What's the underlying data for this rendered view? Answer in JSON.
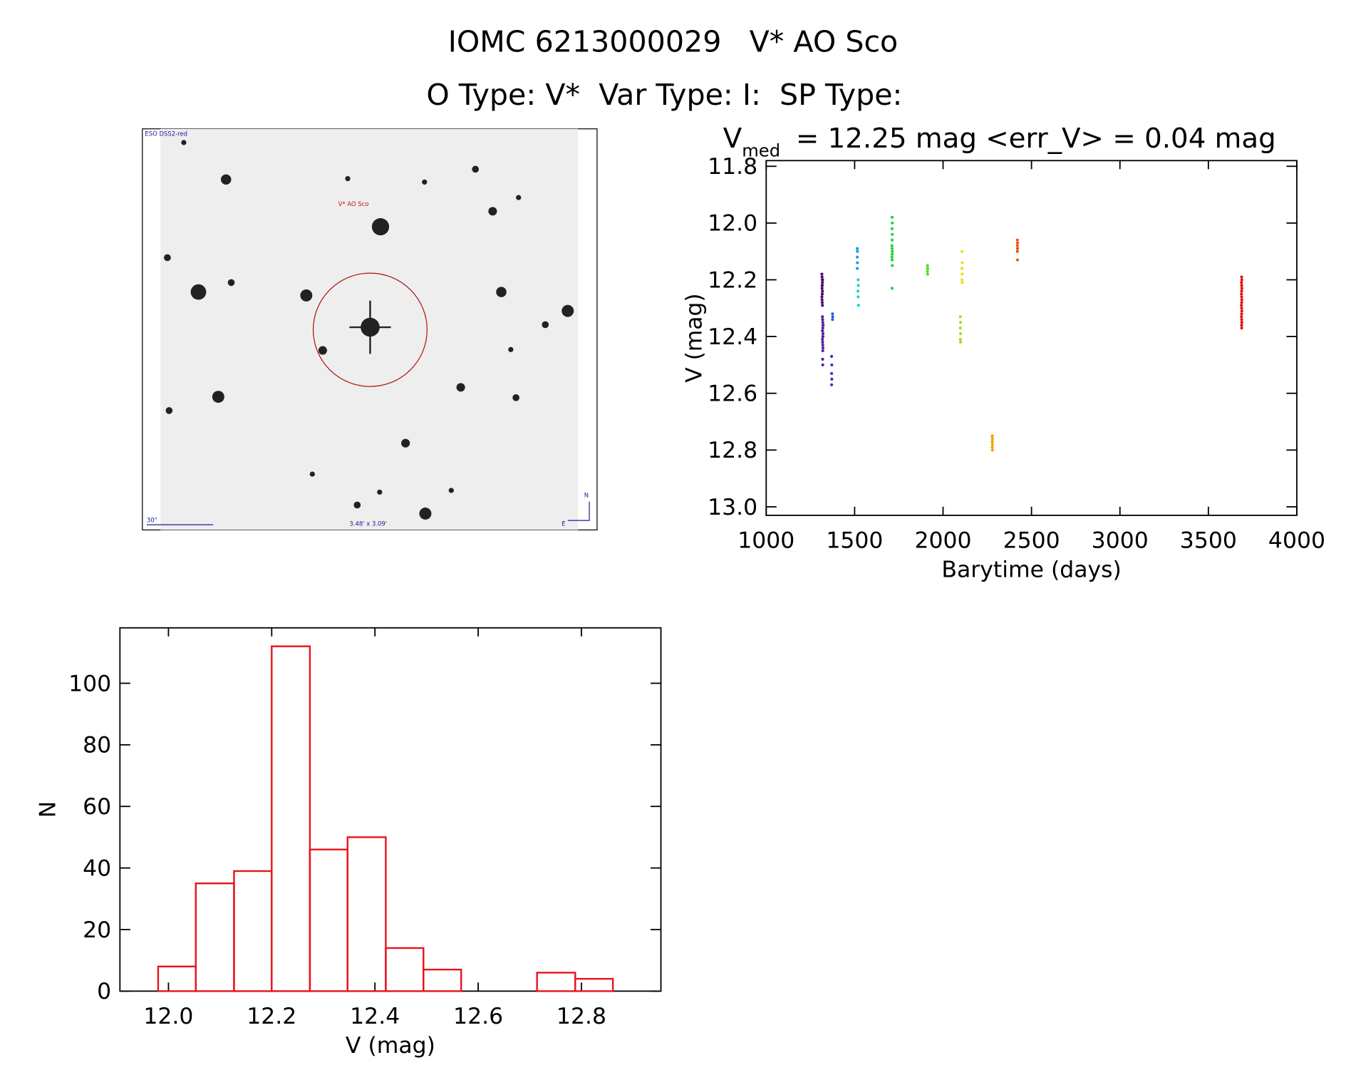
{
  "header": {
    "title": "IOMC 6213000029   V* AO Sco",
    "subtitle": "O Type: V*  Var Type: I:  SP Type:"
  },
  "image": {
    "survey": "ESO DSS2-red",
    "target": "V* AO Sco",
    "scale": "30\"",
    "size": "3.48' x 3.09'",
    "north": "N",
    "east": "E"
  },
  "chart_data": [
    {
      "type": "scatter",
      "title": {
        "symbol": "V",
        "subscript": "med",
        "text": "= 12.25 mag <err_V> = 0.04 mag"
      },
      "x_label": "Barytime (days)",
      "y_label": "V (mag)",
      "xlim": [
        1000,
        4000
      ],
      "xticks": [
        1000,
        1500,
        2000,
        2500,
        3000,
        3500,
        4000
      ],
      "ylim": [
        11.78,
        13.03
      ],
      "y_inverted": true,
      "yticks": [
        11.8,
        {
          "value": 12.0,
          "label": "12.0"
        },
        12.2,
        12.4,
        12.6,
        12.8,
        {
          "value": 13.0,
          "label": "13.0"
        }
      ],
      "series": [
        {
          "color": "#4b0c7a",
          "x": [
            1315,
            1316,
            1317,
            1318,
            1317,
            1316,
            1318,
            1317,
            1315,
            1316,
            1317,
            1318,
            1319,
            1316,
            1317
          ],
          "values": [
            12.18,
            12.19,
            12.2,
            12.21,
            12.22,
            12.23,
            12.24,
            12.25,
            12.26,
            12.27,
            12.28,
            12.29,
            12.2,
            12.22,
            12.25
          ]
        },
        {
          "color": "#5a1fa0",
          "x": [
            1318,
            1319,
            1320,
            1321,
            1320,
            1319,
            1321,
            1320,
            1318,
            1319,
            1320,
            1321,
            1320,
            1319,
            1320,
            1322,
            1318,
            1321
          ],
          "values": [
            12.33,
            12.34,
            12.35,
            12.36,
            12.37,
            12.38,
            12.39,
            12.4,
            12.41,
            12.42,
            12.43,
            12.44,
            12.45,
            12.48,
            12.5,
            12.36,
            12.38,
            12.4
          ]
        },
        {
          "color": "#3d2fc8",
          "x": [
            1370,
            1371,
            1370,
            1371,
            1370
          ],
          "values": [
            12.47,
            12.5,
            12.53,
            12.55,
            12.57
          ]
        },
        {
          "color": "#2060e0",
          "x": [
            1375,
            1376,
            1375
          ],
          "values": [
            12.32,
            12.33,
            12.34
          ]
        },
        {
          "color": "#1a9ae8",
          "x": [
            1515,
            1516,
            1515,
            1516,
            1515
          ],
          "values": [
            12.09,
            12.1,
            12.12,
            12.14,
            12.16
          ]
        },
        {
          "color": "#20d0d0",
          "x": [
            1520,
            1521,
            1519,
            1520,
            1522
          ],
          "values": [
            12.2,
            12.22,
            12.24,
            12.26,
            12.29
          ]
        },
        {
          "color": "#20d040",
          "x": [
            1712,
            1713,
            1712,
            1713,
            1712,
            1711,
            1712,
            1713,
            1712,
            1711,
            1712,
            1713,
            1712
          ],
          "values": [
            11.98,
            12.0,
            12.02,
            12.04,
            12.06,
            12.08,
            12.09,
            12.1,
            12.11,
            12.12,
            12.13,
            12.15,
            12.23
          ]
        },
        {
          "color": "#50e020",
          "x": [
            1912,
            1913,
            1912,
            1913
          ],
          "values": [
            12.15,
            12.16,
            12.17,
            12.18
          ]
        },
        {
          "color": "#a0e020",
          "x": [
            2098,
            2099,
            2098,
            2099,
            2098,
            2099
          ],
          "values": [
            12.33,
            12.35,
            12.37,
            12.39,
            12.41,
            12.42
          ]
        },
        {
          "color": "#e8e020",
          "x": [
            2107,
            2108,
            2107,
            2108,
            2107,
            2108
          ],
          "values": [
            12.1,
            12.14,
            12.16,
            12.18,
            12.2,
            12.21
          ]
        },
        {
          "color": "#f0a000",
          "x": [
            2278,
            2279,
            2278,
            2279,
            2278,
            2279
          ],
          "values": [
            12.75,
            12.76,
            12.77,
            12.78,
            12.79,
            12.8
          ]
        },
        {
          "color": "#f05010",
          "x": [
            2420,
            2421,
            2420,
            2421,
            2420,
            2421
          ],
          "values": [
            12.06,
            12.07,
            12.08,
            12.09,
            12.1,
            12.13
          ]
        },
        {
          "color": "#e81010",
          "x": [
            3688,
            3689,
            3687,
            3688,
            3689,
            3688,
            3687,
            3688,
            3689,
            3688,
            3687,
            3688,
            3689,
            3688,
            3687,
            3688,
            3689,
            3688,
            3688
          ],
          "values": [
            12.19,
            12.2,
            12.21,
            12.22,
            12.23,
            12.24,
            12.25,
            12.26,
            12.27,
            12.28,
            12.29,
            12.3,
            12.31,
            12.32,
            12.33,
            12.34,
            12.35,
            12.36,
            12.37
          ]
        }
      ]
    },
    {
      "type": "histogram",
      "x_label": "V (mag)",
      "y_label": "N",
      "color": "#e8141c",
      "bins": [
        11.98,
        12.053,
        12.127,
        12.2,
        12.274,
        12.347,
        12.421,
        12.494,
        12.567,
        12.641,
        12.714,
        12.788,
        12.861
      ],
      "values": [
        8,
        35,
        39,
        112,
        46,
        50,
        14,
        7,
        0,
        0,
        6,
        4
      ],
      "xlim": [
        11.906,
        12.954
      ],
      "xticks": [
        {
          "value": 12.0,
          "label": "12.0"
        },
        12.2,
        12.4,
        12.6,
        12.8
      ],
      "ylim": [
        0,
        118
      ],
      "yticks": [
        0,
        20,
        40,
        60,
        80,
        100
      ]
    }
  ]
}
